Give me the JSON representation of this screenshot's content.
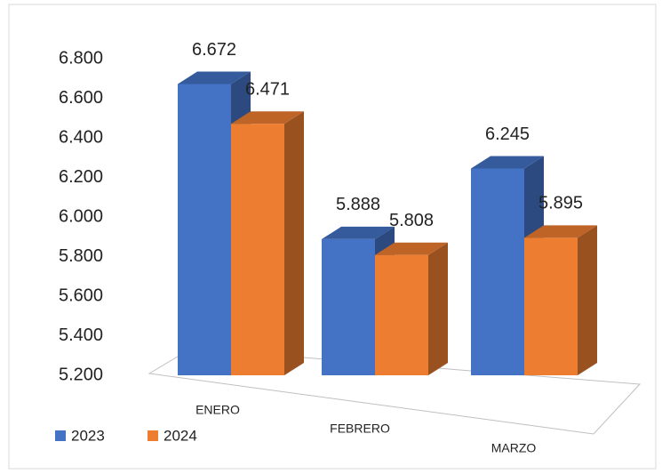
{
  "chart_data": {
    "type": "bar3d",
    "categories": [
      "ENERO",
      "FEBRERO",
      "MARZO"
    ],
    "series": [
      {
        "name": "2023",
        "color": "#4472c4",
        "values": [
          6672,
          5888,
          6245
        ],
        "value_labels": [
          "6.672",
          "5.888",
          "6.245"
        ]
      },
      {
        "name": "2024",
        "color": "#ed7d31",
        "values": [
          6471,
          5808,
          5895
        ],
        "value_labels": [
          "6.471",
          "5.808",
          "5.895"
        ]
      }
    ],
    "ylim": [
      5200,
      6800
    ],
    "yticks": [
      {
        "value": 5200,
        "label": "5.200"
      },
      {
        "value": 5400,
        "label": "5.400"
      },
      {
        "value": 5600,
        "label": "5.600"
      },
      {
        "value": 5800,
        "label": "5.800"
      },
      {
        "value": 6000,
        "label": "6.000"
      },
      {
        "value": 6200,
        "label": "6.200"
      },
      {
        "value": 6400,
        "label": "6.400"
      },
      {
        "value": 6600,
        "label": "6.600"
      },
      {
        "value": 6800,
        "label": "6.800"
      }
    ],
    "legend": "bottom-left"
  }
}
